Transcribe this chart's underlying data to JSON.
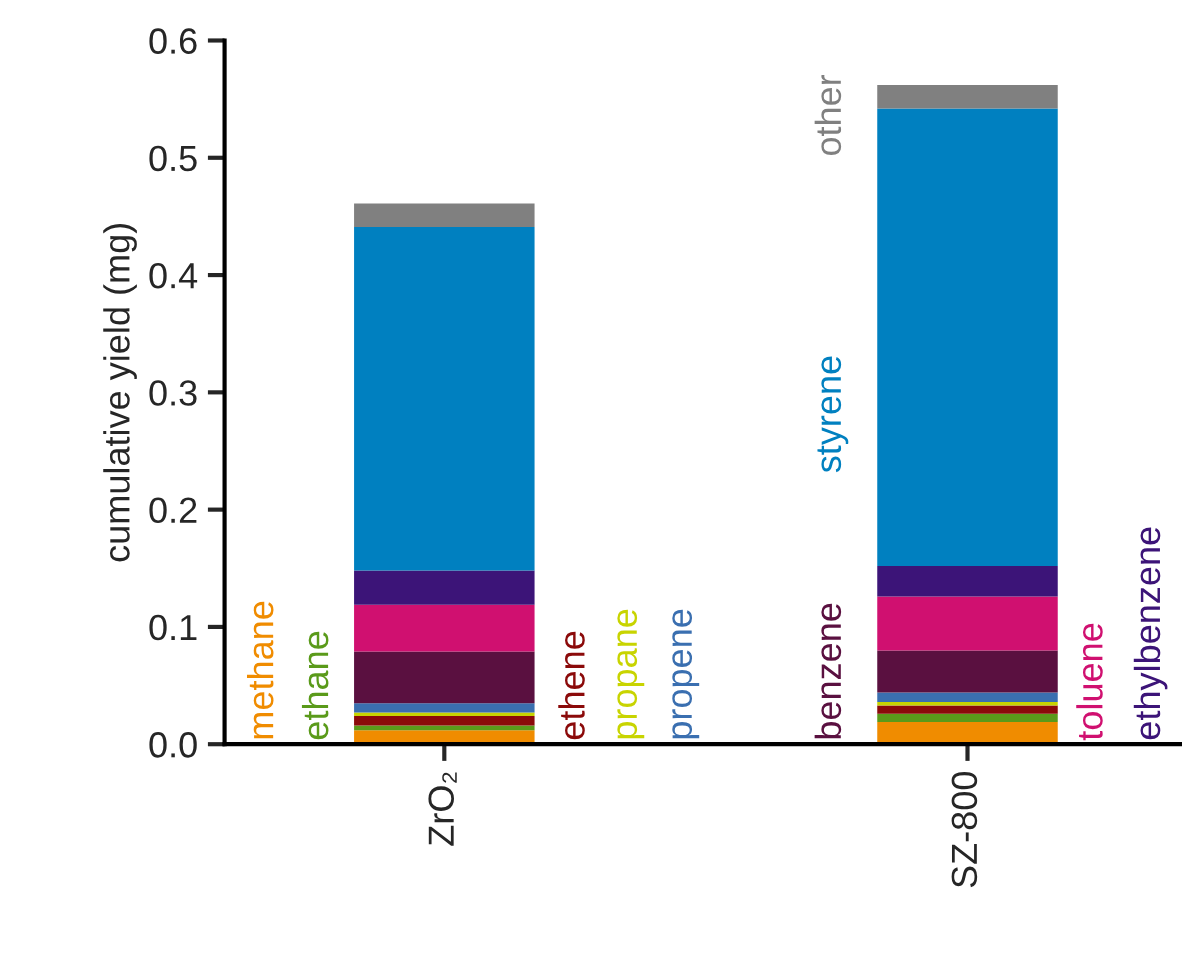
{
  "chart_data": {
    "type": "bar",
    "stacked": true,
    "ylabel": "cumulative yield (mg)",
    "categories": [
      "ZrO₂",
      "SZ-800"
    ],
    "series": [
      {
        "name": "methane",
        "color": "#f08c00",
        "values": [
          0.012,
          0.019
        ]
      },
      {
        "name": "ethane",
        "color": "#5a9a1a",
        "values": [
          0.004,
          0.007
        ]
      },
      {
        "name": "ethene",
        "color": "#8b0a0a",
        "values": [
          0.008,
          0.007
        ]
      },
      {
        "name": "propane",
        "color": "#c8d400",
        "values": [
          0.003,
          0.003
        ]
      },
      {
        "name": "propene",
        "color": "#3a6fb0",
        "values": [
          0.008,
          0.008
        ]
      },
      {
        "name": "benzene",
        "color": "#5a1040",
        "values": [
          0.044,
          0.036
        ]
      },
      {
        "name": "toluene",
        "color": "#d01070",
        "values": [
          0.04,
          0.046
        ]
      },
      {
        "name": "ethylbenzene",
        "color": "#3c1478",
        "values": [
          0.029,
          0.026
        ]
      },
      {
        "name": "styrene",
        "color": "#0080c0",
        "values": [
          0.293,
          0.39
        ]
      },
      {
        "name": "other",
        "color": "#808080",
        "values": [
          0.02,
          0.02
        ]
      }
    ],
    "ylim": [
      0,
      0.6
    ],
    "yticks": [
      {
        "value": 0,
        "label": "0.0"
      },
      {
        "value": 0.1,
        "label": "0.1"
      },
      {
        "value": 0.2,
        "label": "0.2"
      },
      {
        "value": 0.3,
        "label": "0.3"
      },
      {
        "value": 0.4,
        "label": "0.4"
      },
      {
        "value": 0.5,
        "label": "0.5"
      },
      {
        "value": 0.6,
        "label": "0.6"
      }
    ],
    "grid": false,
    "legend": false
  }
}
